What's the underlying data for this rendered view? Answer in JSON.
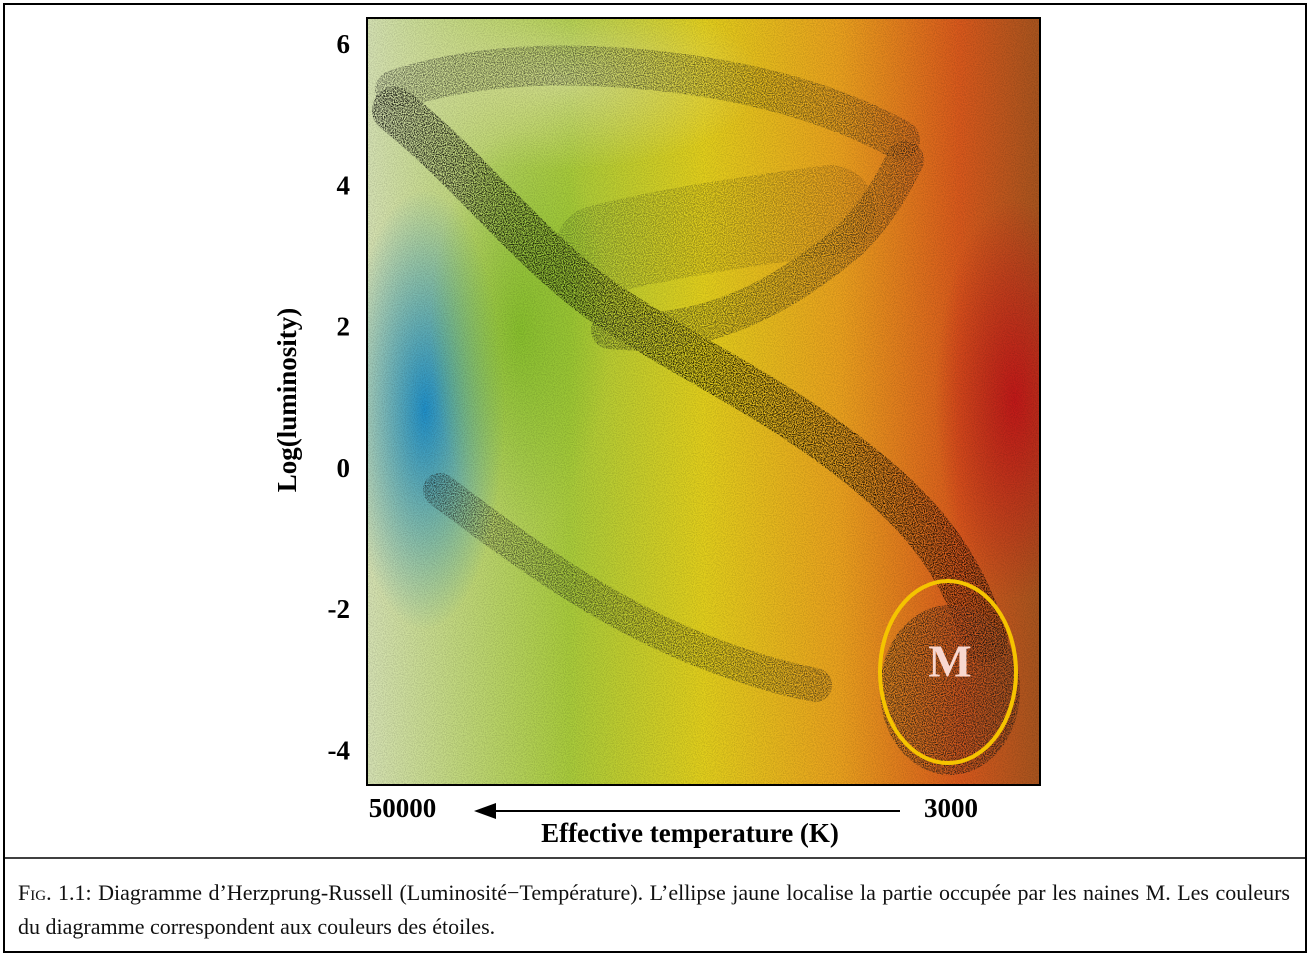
{
  "chart_data": {
    "type": "scatter",
    "ylabel": "Log(luminosity)",
    "xlabel": "Effective temperature (K)",
    "xscale": "log",
    "xlim": [
      60000,
      1900
    ],
    "xticks": [
      50000,
      3000
    ],
    "ylim": [
      -4.45,
      6.41
    ],
    "yticks": [
      6,
      4,
      2,
      0,
      -2,
      -4
    ],
    "annotation": "M",
    "annotation_color": "#f5c400"
  },
  "caption": {
    "label": "Fig. 1.1:",
    "text": "Diagramme d’Herzprung-Russell (Luminosité−Température). L’ellipse jaune localise la partie occupée par les naines M. Les couleurs du diagramme correspondent aux couleurs des étoiles."
  }
}
